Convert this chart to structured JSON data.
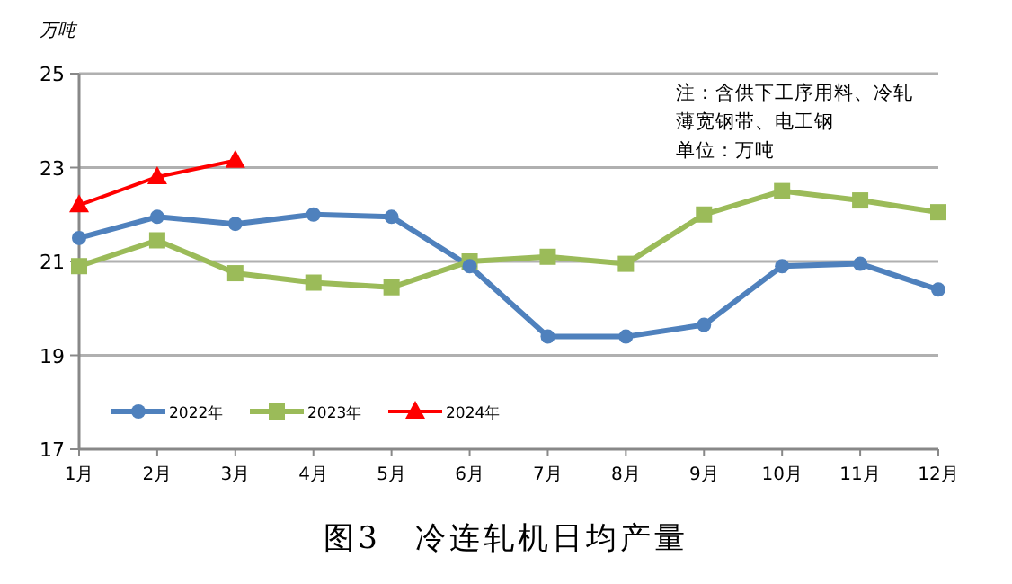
{
  "chart_data": {
    "type": "line",
    "title": "图3　冷连轧机日均产量",
    "ylabel": "万吨",
    "categories": [
      "1月",
      "2月",
      "3月",
      "4月",
      "5月",
      "6月",
      "7月",
      "8月",
      "9月",
      "10月",
      "11月",
      "12月"
    ],
    "series": [
      {
        "name": "2022年",
        "color": "#4f81bd",
        "marker": "circle",
        "values": [
          21.5,
          21.95,
          21.8,
          22.0,
          21.95,
          20.9,
          19.4,
          19.4,
          19.65,
          20.9,
          20.95,
          20.4
        ]
      },
      {
        "name": "2023年",
        "color": "#9bbb59",
        "marker": "square",
        "values": [
          20.9,
          21.45,
          20.75,
          20.55,
          20.45,
          21.0,
          21.1,
          20.95,
          22.0,
          22.5,
          22.3,
          22.05
        ]
      },
      {
        "name": "2024年",
        "color": "#ff0000",
        "marker": "triangle",
        "values": [
          22.2,
          22.8,
          23.15,
          null,
          null,
          null,
          null,
          null,
          null,
          null,
          null,
          null
        ]
      }
    ],
    "ylim": [
      17,
      25
    ],
    "yticks": [
      17,
      19,
      21,
      23,
      25
    ],
    "grid": "y",
    "legend": "bottom left",
    "annotations": [
      "注：含供下工序用料、冷轧薄宽钢带、电工钢",
      "单位：万吨"
    ]
  }
}
